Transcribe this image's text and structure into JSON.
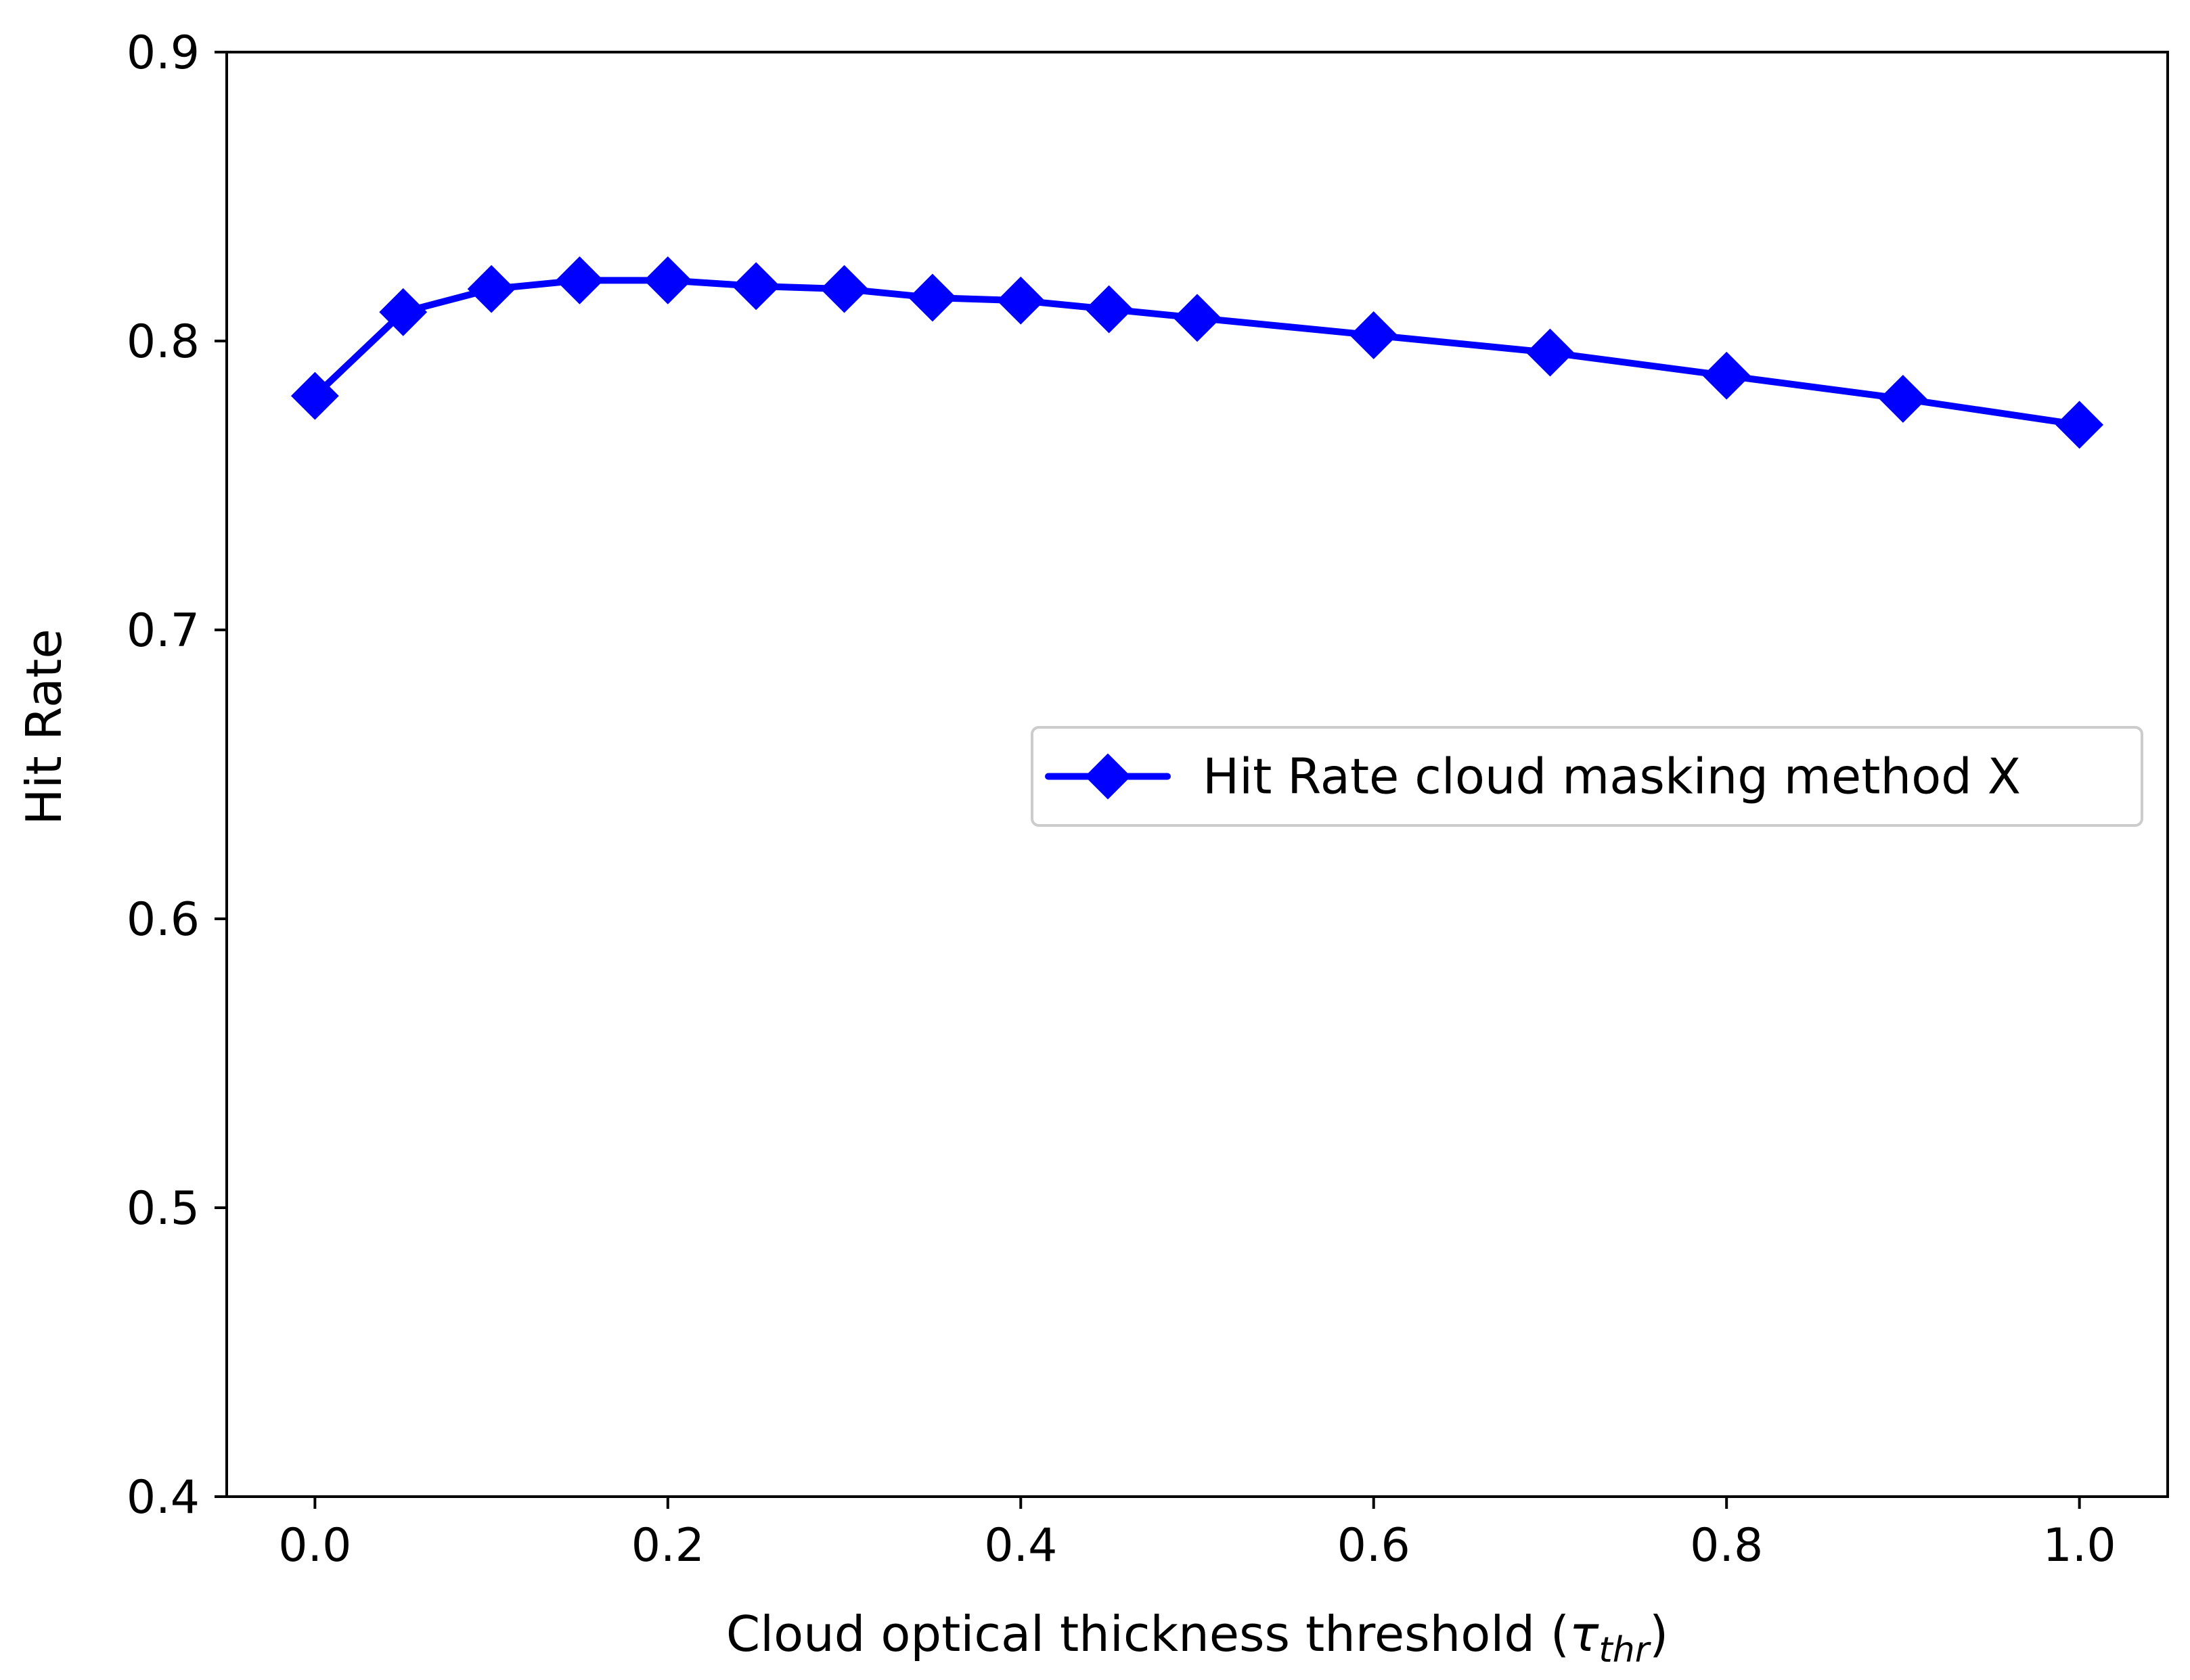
{
  "chart_data": {
    "type": "line",
    "title": "",
    "xlabel": "Cloud optical thickness threshold (",
    "xlabel_symbol": "τ",
    "xlabel_subscript": "thr",
    "xlabel_close": ")",
    "ylabel": "Hit Rate",
    "xlim": [
      -0.05,
      1.05
    ],
    "ylim": [
      0.4,
      0.9
    ],
    "xticks": [
      0.0,
      0.2,
      0.4,
      0.6,
      0.8,
      1.0
    ],
    "xtick_labels": [
      "0.0",
      "0.2",
      "0.4",
      "0.6",
      "0.8",
      "1.0"
    ],
    "yticks": [
      0.4,
      0.5,
      0.6,
      0.7,
      0.8,
      0.9
    ],
    "ytick_labels": [
      "0.4",
      "0.5",
      "0.6",
      "0.7",
      "0.8",
      "0.9"
    ],
    "grid": false,
    "legend_position": "center-right",
    "series": [
      {
        "name": "Hit Rate cloud masking method X",
        "color": "#0000ff",
        "marker": "diamond",
        "x": [
          0.0,
          0.05,
          0.1,
          0.15,
          0.2,
          0.25,
          0.3,
          0.35,
          0.4,
          0.45,
          0.5,
          0.6,
          0.7,
          0.8,
          0.9,
          1.0
        ],
        "y": [
          0.781,
          0.81,
          0.818,
          0.821,
          0.821,
          0.819,
          0.818,
          0.815,
          0.814,
          0.811,
          0.808,
          0.802,
          0.796,
          0.788,
          0.78,
          0.771
        ]
      }
    ]
  }
}
